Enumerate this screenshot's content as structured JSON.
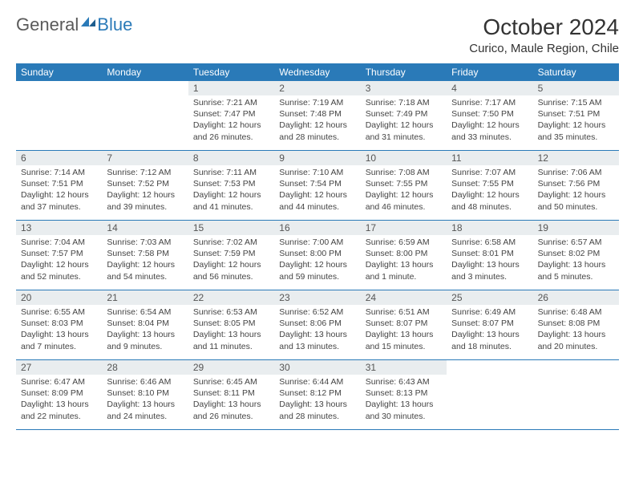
{
  "logo": {
    "text1": "General",
    "text2": "Blue"
  },
  "title": "October 2024",
  "location": "Curico, Maule Region, Chile",
  "colors": {
    "header_bg": "#2a7ab8",
    "dayhead_bg": "#e9edef",
    "rule": "#2a7ab8"
  },
  "day_names": [
    "Sunday",
    "Monday",
    "Tuesday",
    "Wednesday",
    "Thursday",
    "Friday",
    "Saturday"
  ],
  "weeks": [
    [
      null,
      null,
      {
        "n": "1",
        "sr": "7:21 AM",
        "ss": "7:47 PM",
        "dl": "12 hours and 26 minutes."
      },
      {
        "n": "2",
        "sr": "7:19 AM",
        "ss": "7:48 PM",
        "dl": "12 hours and 28 minutes."
      },
      {
        "n": "3",
        "sr": "7:18 AM",
        "ss": "7:49 PM",
        "dl": "12 hours and 31 minutes."
      },
      {
        "n": "4",
        "sr": "7:17 AM",
        "ss": "7:50 PM",
        "dl": "12 hours and 33 minutes."
      },
      {
        "n": "5",
        "sr": "7:15 AM",
        "ss": "7:51 PM",
        "dl": "12 hours and 35 minutes."
      }
    ],
    [
      {
        "n": "6",
        "sr": "7:14 AM",
        "ss": "7:51 PM",
        "dl": "12 hours and 37 minutes."
      },
      {
        "n": "7",
        "sr": "7:12 AM",
        "ss": "7:52 PM",
        "dl": "12 hours and 39 minutes."
      },
      {
        "n": "8",
        "sr": "7:11 AM",
        "ss": "7:53 PM",
        "dl": "12 hours and 41 minutes."
      },
      {
        "n": "9",
        "sr": "7:10 AM",
        "ss": "7:54 PM",
        "dl": "12 hours and 44 minutes."
      },
      {
        "n": "10",
        "sr": "7:08 AM",
        "ss": "7:55 PM",
        "dl": "12 hours and 46 minutes."
      },
      {
        "n": "11",
        "sr": "7:07 AM",
        "ss": "7:55 PM",
        "dl": "12 hours and 48 minutes."
      },
      {
        "n": "12",
        "sr": "7:06 AM",
        "ss": "7:56 PM",
        "dl": "12 hours and 50 minutes."
      }
    ],
    [
      {
        "n": "13",
        "sr": "7:04 AM",
        "ss": "7:57 PM",
        "dl": "12 hours and 52 minutes."
      },
      {
        "n": "14",
        "sr": "7:03 AM",
        "ss": "7:58 PM",
        "dl": "12 hours and 54 minutes."
      },
      {
        "n": "15",
        "sr": "7:02 AM",
        "ss": "7:59 PM",
        "dl": "12 hours and 56 minutes."
      },
      {
        "n": "16",
        "sr": "7:00 AM",
        "ss": "8:00 PM",
        "dl": "12 hours and 59 minutes."
      },
      {
        "n": "17",
        "sr": "6:59 AM",
        "ss": "8:00 PM",
        "dl": "13 hours and 1 minute."
      },
      {
        "n": "18",
        "sr": "6:58 AM",
        "ss": "8:01 PM",
        "dl": "13 hours and 3 minutes."
      },
      {
        "n": "19",
        "sr": "6:57 AM",
        "ss": "8:02 PM",
        "dl": "13 hours and 5 minutes."
      }
    ],
    [
      {
        "n": "20",
        "sr": "6:55 AM",
        "ss": "8:03 PM",
        "dl": "13 hours and 7 minutes."
      },
      {
        "n": "21",
        "sr": "6:54 AM",
        "ss": "8:04 PM",
        "dl": "13 hours and 9 minutes."
      },
      {
        "n": "22",
        "sr": "6:53 AM",
        "ss": "8:05 PM",
        "dl": "13 hours and 11 minutes."
      },
      {
        "n": "23",
        "sr": "6:52 AM",
        "ss": "8:06 PM",
        "dl": "13 hours and 13 minutes."
      },
      {
        "n": "24",
        "sr": "6:51 AM",
        "ss": "8:07 PM",
        "dl": "13 hours and 15 minutes."
      },
      {
        "n": "25",
        "sr": "6:49 AM",
        "ss": "8:07 PM",
        "dl": "13 hours and 18 minutes."
      },
      {
        "n": "26",
        "sr": "6:48 AM",
        "ss": "8:08 PM",
        "dl": "13 hours and 20 minutes."
      }
    ],
    [
      {
        "n": "27",
        "sr": "6:47 AM",
        "ss": "8:09 PM",
        "dl": "13 hours and 22 minutes."
      },
      {
        "n": "28",
        "sr": "6:46 AM",
        "ss": "8:10 PM",
        "dl": "13 hours and 24 minutes."
      },
      {
        "n": "29",
        "sr": "6:45 AM",
        "ss": "8:11 PM",
        "dl": "13 hours and 26 minutes."
      },
      {
        "n": "30",
        "sr": "6:44 AM",
        "ss": "8:12 PM",
        "dl": "13 hours and 28 minutes."
      },
      {
        "n": "31",
        "sr": "6:43 AM",
        "ss": "8:13 PM",
        "dl": "13 hours and 30 minutes."
      },
      null,
      null
    ]
  ],
  "labels": {
    "sunrise": "Sunrise:",
    "sunset": "Sunset:",
    "daylight": "Daylight:"
  }
}
